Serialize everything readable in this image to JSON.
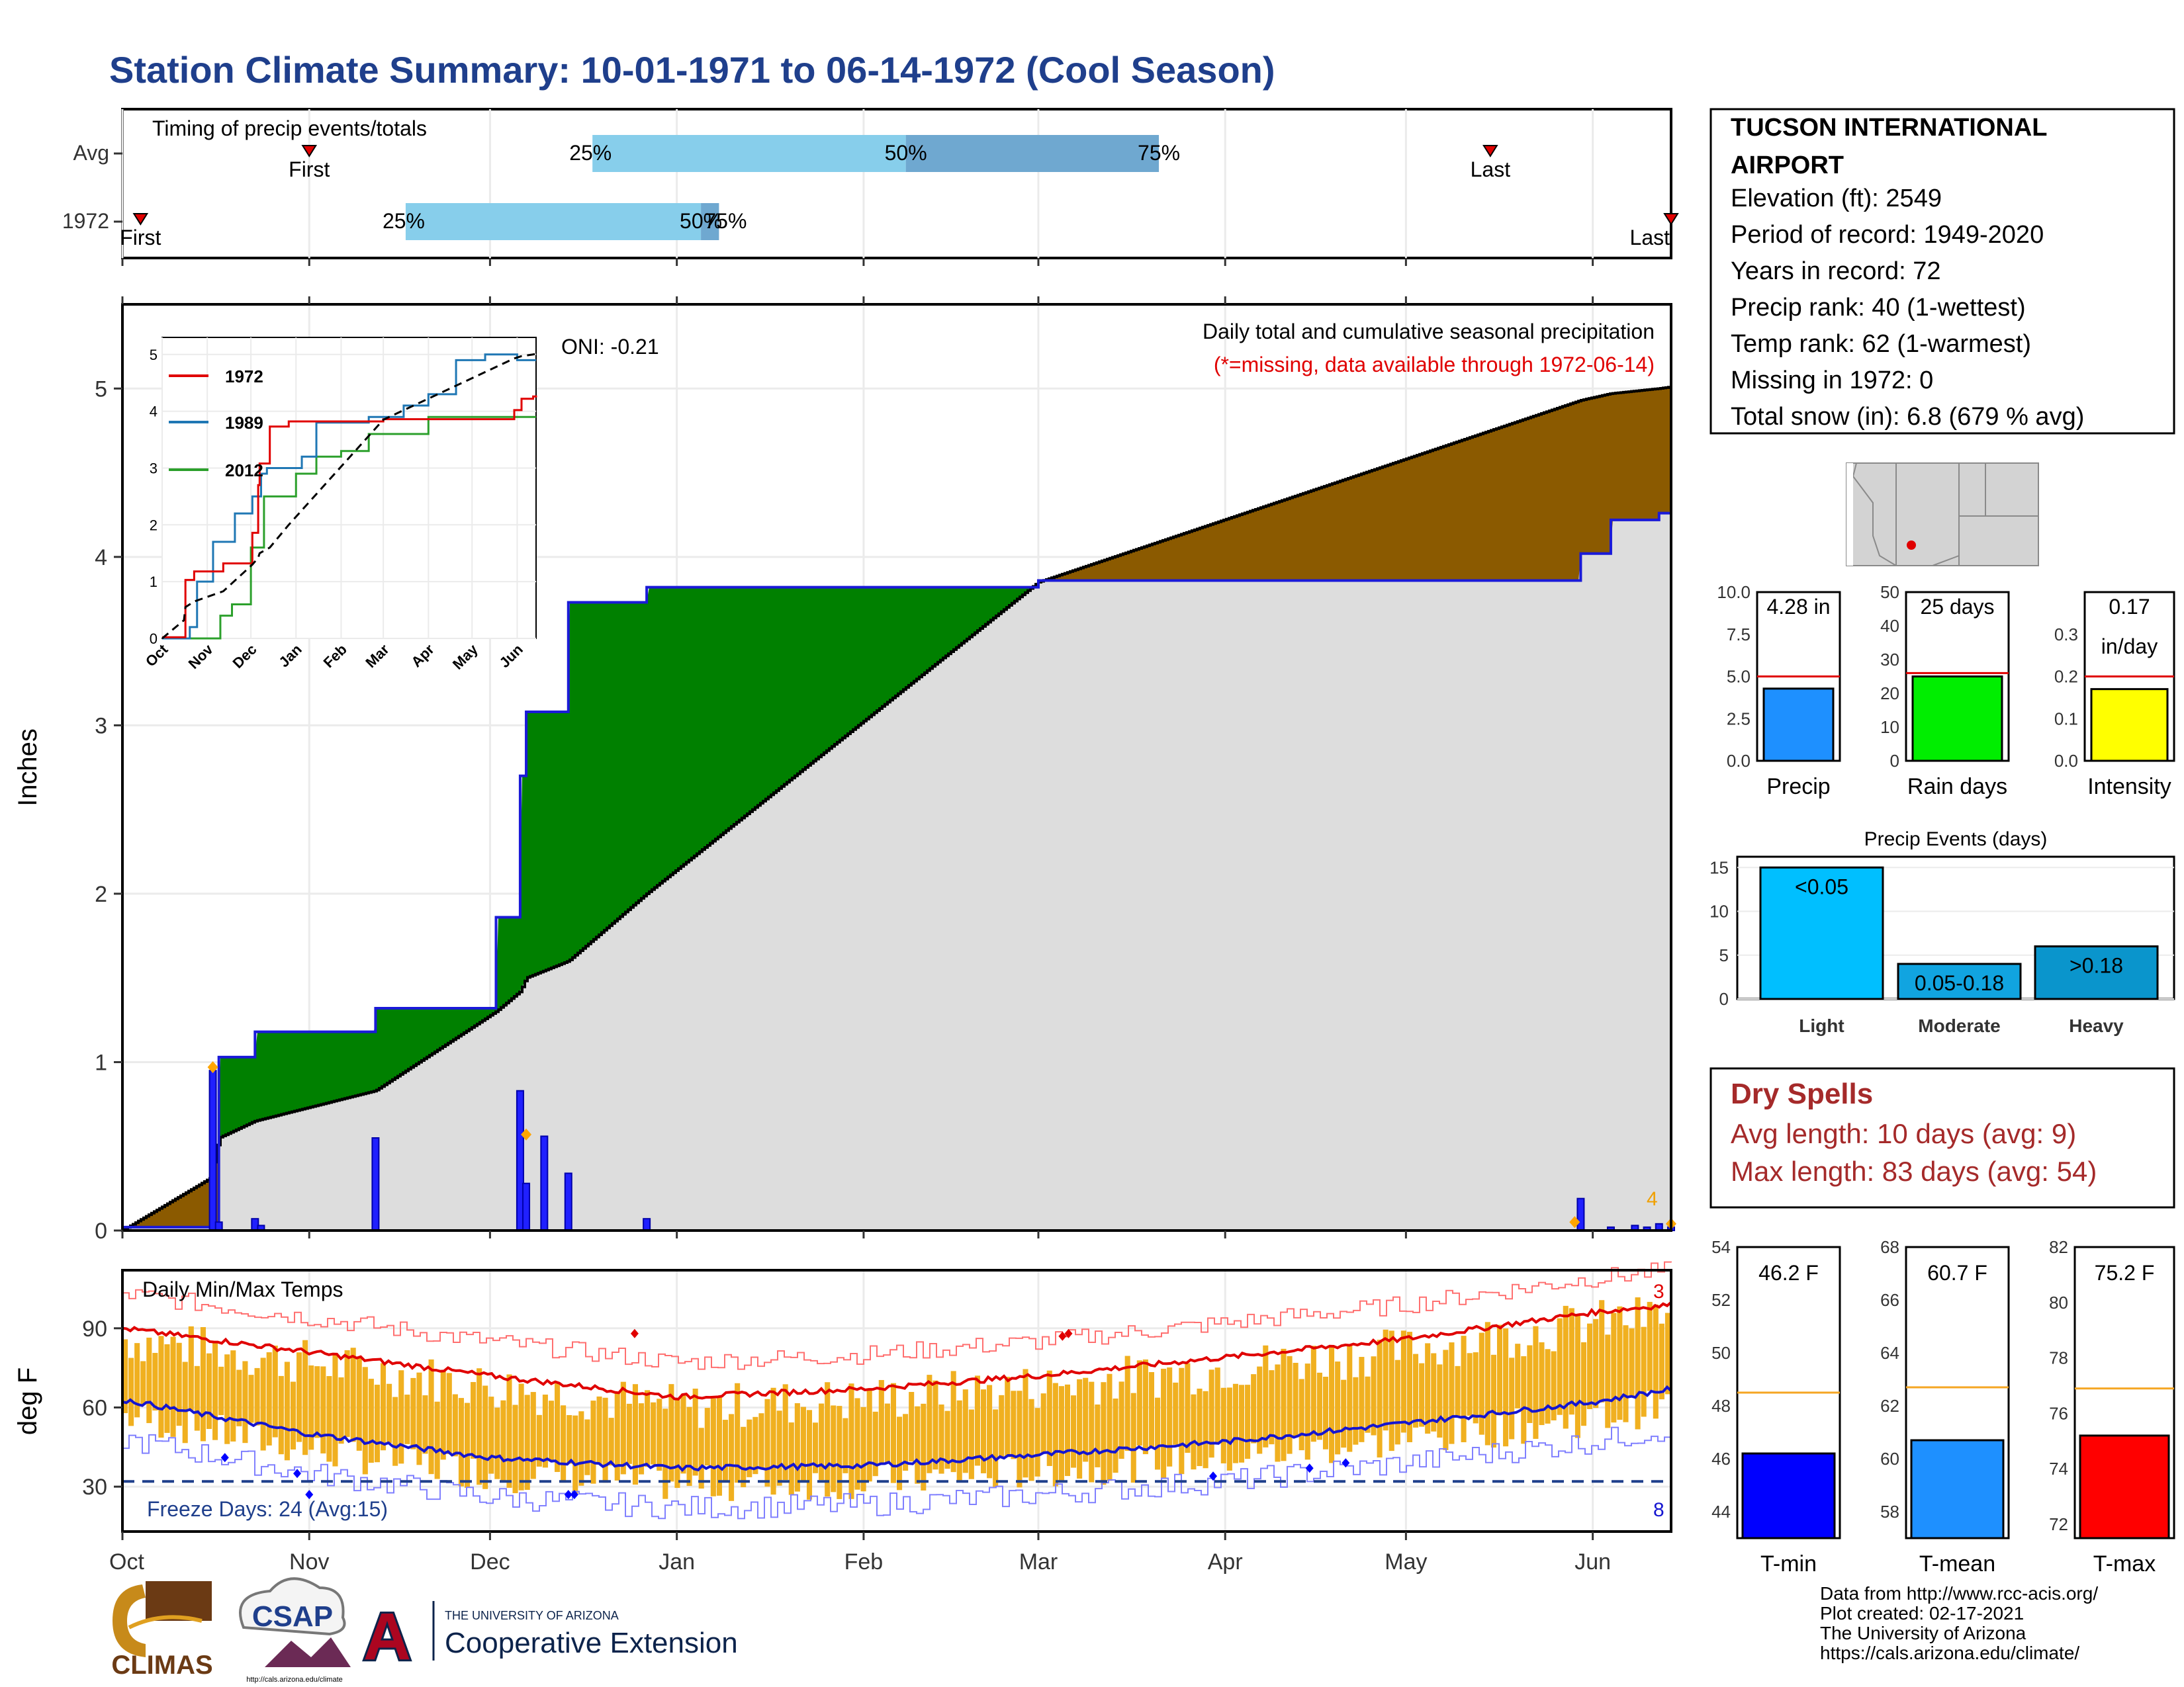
{
  "page_title": "Station Climate Summary: 10-01-1971 to 06-14-1972 (Cool Season)",
  "colors": {
    "title": "#1f3f8c",
    "precip_surplus": "#008000",
    "precip_deficit": "#8b5a00",
    "avg_fill": "#dddddd",
    "daily_bar": "#2020ff",
    "temp_bar": "#f0b020",
    "tmax_line": "#e00000",
    "tmin_line": "#1515d0",
    "timing_light": "#87ceeb",
    "timing_dark": "#6fa8d0"
  },
  "station_box": {
    "name": "TUCSON INTERNATIONAL AIRPORT",
    "lines": [
      "Elevation (ft): 2549",
      "Period of record: 1949-2020",
      "Years in record: 72",
      "Precip rank: 40 (1-wettest)",
      "Temp rank: 62 (1-warmest)",
      "Missing in 1972: 0",
      "Total snow (in): 6.8 (679 % avg)"
    ]
  },
  "timing_panel": {
    "title": "Timing of precip events/totals",
    "rows": [
      {
        "label": "Avg",
        "first": "First",
        "last": "Last",
        "first_date": "1971-11-01",
        "last_date": "1972-05-15",
        "p25": "25%",
        "p50": "50%",
        "p75": "75%",
        "p25_date": "1971-12-18",
        "p50_date": "1972-02-08",
        "p75_date": "1972-03-21"
      },
      {
        "label": "1972",
        "first": "First",
        "last": "Last",
        "first_date": "1971-10-04",
        "last_date": "1972-06-14",
        "p25": "25%",
        "p50": "50%",
        "p75": "75%",
        "p25_date": "1971-11-17",
        "p50_date": "1972-01-05",
        "p75_date": "1972-01-08"
      }
    ]
  },
  "precip_panel": {
    "title": "Daily total and cumulative seasonal precipitation",
    "note": "(*=missing, data available through 1972-06-14)",
    "oni": "ONI: -0.21",
    "ylabel": "Inches",
    "right_count": "4"
  },
  "inset": {
    "series": [
      {
        "name": "1972",
        "color": "#e00000"
      },
      {
        "name": "1989",
        "color": "#1f77b4"
      },
      {
        "name": "2012",
        "color": "#2ca02c"
      }
    ],
    "months": [
      "Oct",
      "Nov",
      "Dec",
      "Jan",
      "Feb",
      "Mar",
      "Apr",
      "May",
      "Jun"
    ],
    "yticks": [
      "0",
      "1",
      "2",
      "3",
      "4",
      "5"
    ]
  },
  "temp_panel": {
    "title": "Daily Min/Max Temps",
    "ylabel": "deg F",
    "freeze": "Freeze Days: 24 (Avg:15)",
    "right_top": "3",
    "right_bottom": "8"
  },
  "month_axis": [
    "Oct",
    "Nov",
    "Dec",
    "Jan",
    "Feb",
    "Mar",
    "Apr",
    "May",
    "Jun"
  ],
  "precip_yticks": [
    "0",
    "1",
    "2",
    "3",
    "4",
    "5"
  ],
  "temp_yticks": [
    "30",
    "60",
    "90"
  ],
  "bars_precip": [
    {
      "label": "Precip",
      "value": 4.28,
      "avg": 5.0,
      "text": "4.28 in",
      "ticks": [
        "0.0",
        "2.5",
        "5.0",
        "7.5",
        "10.0"
      ],
      "max": 10,
      "color": "#1e90ff"
    },
    {
      "label": "Rain days",
      "value": 25,
      "avg": 26,
      "text": "25 days",
      "ticks": [
        "0",
        "10",
        "20",
        "30",
        "40",
        "50"
      ],
      "max": 50,
      "color": "#00ee00"
    },
    {
      "label": "Intensity",
      "value": 0.17,
      "avg": 0.2,
      "text": "0.17",
      "text2": "in/day",
      "ticks": [
        "0.0",
        "0.1",
        "0.2",
        "0.3"
      ],
      "max": 0.4,
      "color": "#ffff00"
    }
  ],
  "events": {
    "title": "Precip Events (days)",
    "ticks": [
      "0",
      "5",
      "10",
      "15"
    ],
    "bars": [
      {
        "label": "Light",
        "value": 15,
        "text": "<0.05",
        "color": "#00bfff"
      },
      {
        "label": "Moderate",
        "value": 4,
        "text": "0.05-0.18",
        "color": "#11a4e0"
      },
      {
        "label": "Heavy",
        "value": 6,
        "text": ">0.18",
        "color": "#0a95cc"
      }
    ]
  },
  "dry_spells": {
    "title": "Dry Spells",
    "avg": "Avg length: 10 days (avg: 9)",
    "max": "Max length: 83 days (avg: 54)"
  },
  "temp_bars": [
    {
      "label": "T-min",
      "value": 46.2,
      "avg": 48.5,
      "text": "46.2 F",
      "ticks": [
        "44",
        "46",
        "48",
        "50",
        "52",
        "54"
      ],
      "min": 43,
      "max": 54,
      "color": "#0000ff"
    },
    {
      "label": "T-mean",
      "value": 60.7,
      "avg": 62.7,
      "text": "60.7 F",
      "ticks": [
        "58",
        "60",
        "62",
        "64",
        "66",
        "68"
      ],
      "min": 57,
      "max": 68,
      "color": "#1e90ff"
    },
    {
      "label": "T-max",
      "value": 75.2,
      "avg": 76.9,
      "text": "75.2 F",
      "ticks": [
        "72",
        "74",
        "76",
        "78",
        "80",
        "82"
      ],
      "min": 71.5,
      "max": 82,
      "color": "#ff0000"
    }
  ],
  "footer": {
    "lines": [
      "Data from http://www.rcc-acis.org/",
      "Plot created: 02-17-2021",
      "The University of Arizona",
      "https://cals.arizona.edu/climate/"
    ],
    "climas": "CLIMAS",
    "csap": "CSAP",
    "csap_url": "http://cals.arizona.edu/climate",
    "ua_small": "THE UNIVERSITY OF ARIZONA",
    "ua_big": "Cooperative Extension"
  },
  "chart_data": {
    "type": "area",
    "title": "Daily total and cumulative seasonal precipitation",
    "ylabel": "Inches",
    "ylim": [
      0,
      5.5
    ],
    "x": [
      "1971-10-01",
      "1971-10-16",
      "1971-10-17",
      "1971-10-23",
      "1971-11-12",
      "1971-12-02",
      "1971-12-06",
      "1971-12-07",
      "1971-12-14",
      "1971-12-27",
      "1972-03-01",
      "1972-05-30",
      "1972-06-04",
      "1972-06-12",
      "1972-06-14"
    ],
    "series": [
      {
        "name": "1972",
        "values": [
          0.02,
          0.02,
          1.03,
          1.18,
          1.32,
          1.86,
          2.7,
          3.08,
          3.73,
          3.82,
          3.86,
          4.02,
          4.22,
          4.26,
          4.28
        ]
      },
      {
        "name": "Avg",
        "values": [
          0.0,
          0.32,
          0.55,
          0.65,
          0.83,
          1.3,
          1.42,
          1.5,
          1.6,
          2.0,
          3.85,
          4.93,
          4.97,
          5.0,
          5.01
        ]
      }
    ],
    "daily": {
      "dates": [
        "1971-10-16",
        "1971-10-17",
        "1971-10-23",
        "1971-10-24",
        "1971-11-12",
        "1971-12-06",
        "1971-12-07",
        "1971-12-10",
        "1971-12-14",
        "1971-12-27",
        "1972-05-30",
        "1972-06-04",
        "1972-06-08",
        "1972-06-10",
        "1972-06-12",
        "1972-06-14"
      ],
      "values": [
        0.95,
        0.05,
        0.07,
        0.03,
        0.55,
        0.83,
        0.28,
        0.56,
        0.34,
        0.07,
        0.19,
        0.02,
        0.03,
        0.02,
        0.04,
        0.02
      ]
    },
    "temps": {
      "ylim": [
        13,
        112
      ],
      "avg_tmax": {
        "dates": [
          "1971-10-01",
          "1971-11-01",
          "1971-12-01",
          "1972-01-01",
          "1972-02-01",
          "1972-03-01",
          "1972-04-01",
          "1972-05-01",
          "1972-06-01",
          "1972-06-14"
        ],
        "values": [
          90,
          81,
          72,
          64,
          67,
          72,
          79,
          86,
          96,
          99
        ]
      },
      "avg_tmin": {
        "dates": [
          "1971-10-01",
          "1971-11-01",
          "1971-12-01",
          "1972-01-01",
          "1972-02-01",
          "1972-03-01",
          "1972-04-01",
          "1972-05-01",
          "1972-06-01",
          "1972-06-14"
        ],
        "values": [
          63,
          50,
          41,
          37,
          38,
          42,
          47,
          54,
          62,
          67
        ]
      },
      "freeze_line": 32
    }
  }
}
